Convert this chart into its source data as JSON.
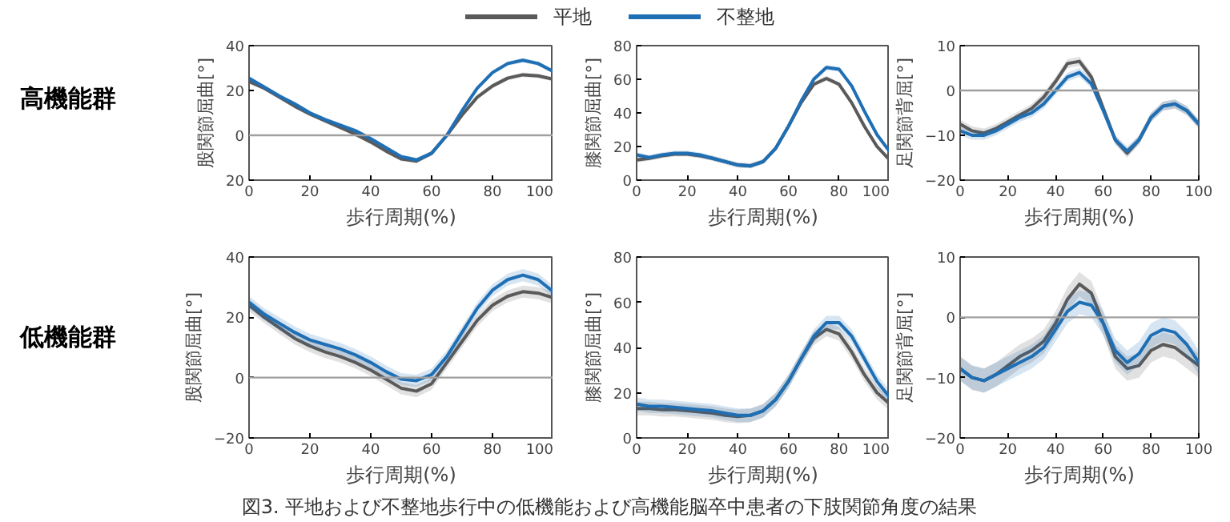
{
  "chart_data": [
    {
      "type": "line",
      "title": "高機能群",
      "ylabel": "股関節屈曲[°]",
      "xlabel": "歩行周期(%)",
      "x": [
        0,
        5,
        10,
        15,
        20,
        25,
        30,
        35,
        40,
        45,
        50,
        55,
        60,
        65,
        70,
        75,
        80,
        85,
        90,
        95,
        100
      ],
      "xlim": [
        0,
        100
      ],
      "xticks": [
        0,
        20,
        40,
        60,
        80,
        100
      ],
      "ylim": [
        -20,
        40
      ],
      "yticks": [
        {
          "value": -20,
          "label": "20"
        },
        0,
        20,
        40
      ],
      "ref_lines": [
        {
          "axis": "y",
          "value": 0,
          "color": "#a0a0a0"
        }
      ],
      "grid": false,
      "series": [
        {
          "color": "#5a5a5a",
          "values": [
            24,
            21,
            17,
            13,
            9.5,
            6.5,
            3.5,
            0.5,
            -3,
            -7,
            -10.5,
            -11.5,
            -8,
            0,
            9,
            17,
            22,
            25.5,
            27,
            26.5,
            25
          ],
          "lower": [
            23,
            20,
            16,
            12,
            8.5,
            5.5,
            2.5,
            -0.5,
            -4,
            -8,
            -11.5,
            -12.5,
            -9,
            -1,
            8,
            16,
            21,
            24.5,
            26,
            25.5,
            24
          ],
          "upper": [
            25,
            22,
            18,
            14,
            10.5,
            7.5,
            4.5,
            1.5,
            -2,
            -6,
            -9.5,
            -10.5,
            -7,
            1,
            10,
            18,
            23,
            26.5,
            28,
            27.5,
            26
          ]
        },
        {
          "color": "#1f6fb5",
          "values": [
            25.5,
            21.5,
            17.5,
            14,
            10,
            7,
            4.5,
            2,
            -1.5,
            -5.5,
            -9.5,
            -11,
            -8,
            0,
            11,
            21,
            28,
            32,
            33.5,
            32,
            28.5
          ],
          "lower": [
            24.5,
            20.5,
            16.5,
            13,
            9,
            6,
            3.5,
            1,
            -2.5,
            -6.5,
            -10.5,
            -12,
            -9,
            -1,
            10,
            20,
            27,
            31,
            32.5,
            31,
            27.5
          ],
          "upper": [
            26.5,
            22.5,
            18.5,
            15,
            11,
            8,
            5.5,
            3,
            -0.5,
            -4.5,
            -8.5,
            -10,
            -7,
            1,
            12,
            22,
            29,
            33,
            34.5,
            33,
            29.5
          ]
        }
      ]
    },
    {
      "type": "line",
      "ylabel": "膝関節屈曲[°]",
      "xlabel": "歩行周期(%)",
      "x": [
        0,
        5,
        10,
        15,
        20,
        25,
        30,
        35,
        40,
        45,
        50,
        55,
        60,
        65,
        70,
        75,
        80,
        85,
        90,
        95,
        100
      ],
      "xlim": [
        0,
        100
      ],
      "xticks": [
        0,
        20,
        40,
        60,
        80,
        100
      ],
      "ylim": [
        0,
        80
      ],
      "yticks": [
        0,
        20,
        40,
        60,
        80
      ],
      "grid": false,
      "legend": "top",
      "series": [
        {
          "name": "平地",
          "color": "#5a5a5a",
          "values": [
            12,
            13,
            14.5,
            15.5,
            15.5,
            14.5,
            13,
            11,
            9,
            8.5,
            11,
            19,
            32,
            46,
            57,
            60.5,
            57,
            46,
            32,
            20,
            12
          ],
          "lower": [
            10.5,
            11.5,
            13,
            14,
            14,
            13,
            11.5,
            9.5,
            7.5,
            7,
            9.5,
            17.5,
            30.5,
            44.5,
            55.5,
            59,
            55.5,
            44.5,
            30.5,
            18.5,
            10.5
          ],
          "upper": [
            13.5,
            14.5,
            16,
            17,
            17,
            16,
            14.5,
            12.5,
            10.5,
            10,
            12.5,
            20.5,
            33.5,
            47.5,
            58.5,
            62,
            58.5,
            47.5,
            33.5,
            21.5,
            13.5
          ]
        },
        {
          "name": "不整地",
          "color": "#1f6fb5",
          "values": [
            15,
            13.5,
            15,
            16,
            16,
            15,
            13,
            11,
            9,
            8.5,
            11,
            19,
            32,
            47,
            60,
            67,
            66,
            56,
            41,
            27,
            17
          ],
          "lower": [
            13.5,
            12,
            13.5,
            14.5,
            14.5,
            13.5,
            11.5,
            9.5,
            7.5,
            7,
            9.5,
            17.5,
            30.5,
            45.5,
            58.5,
            65.5,
            64.5,
            54.5,
            39.5,
            25.5,
            15.5
          ],
          "upper": [
            16.5,
            15,
            16.5,
            17.5,
            17.5,
            16.5,
            14.5,
            12.5,
            10.5,
            10,
            12.5,
            20.5,
            33.5,
            48.5,
            61.5,
            68.5,
            67.5,
            57.5,
            42.5,
            28.5,
            18.5
          ]
        }
      ]
    },
    {
      "type": "line",
      "ylabel": "足関節背屈[°]",
      "xlabel": "歩行周期(%)",
      "x": [
        0,
        5,
        10,
        15,
        20,
        25,
        30,
        35,
        40,
        45,
        50,
        55,
        60,
        65,
        70,
        75,
        80,
        85,
        90,
        95,
        100
      ],
      "xlim": [
        0,
        100
      ],
      "xticks": [
        0,
        20,
        40,
        60,
        80,
        100
      ],
      "ylim": [
        -20,
        10
      ],
      "yticks": [
        -20,
        -10,
        0,
        10
      ],
      "ref_lines": [
        {
          "axis": "y",
          "value": 0,
          "color": "#a0a0a0"
        }
      ],
      "grid": false,
      "series": [
        {
          "color": "#5a5a5a",
          "values": [
            -7.5,
            -9,
            -9.5,
            -8.5,
            -7,
            -5.5,
            -4,
            -1.5,
            2,
            6,
            6.5,
            3,
            -4,
            -11,
            -14,
            -11,
            -6,
            -3.5,
            -3,
            -4.5,
            -7.5
          ],
          "lower": [
            -8.5,
            -10,
            -10.5,
            -9.5,
            -8,
            -6.5,
            -5,
            -2.5,
            1,
            5,
            5.5,
            2,
            -5,
            -12,
            -15,
            -12,
            -7,
            -4.5,
            -4,
            -5.5,
            -8.5
          ],
          "upper": [
            -6.5,
            -8,
            -8.5,
            -7.5,
            -6,
            -4.5,
            -3,
            -0.5,
            3,
            7,
            7.5,
            4,
            -3,
            -10,
            -13,
            -10,
            -5,
            -2.5,
            -2,
            -3.5,
            -6.5
          ]
        },
        {
          "color": "#1f6fb5",
          "values": [
            -9,
            -10,
            -10,
            -9,
            -7.5,
            -6,
            -5,
            -3,
            0,
            3,
            4,
            1.5,
            -4.5,
            -11,
            -13.5,
            -11,
            -6,
            -3.5,
            -3,
            -4.5,
            -7.5
          ],
          "lower": [
            -10,
            -11,
            -11,
            -10,
            -8.5,
            -7,
            -6,
            -4,
            -1,
            2,
            3,
            0.5,
            -5.5,
            -12,
            -14.5,
            -12,
            -7,
            -4.5,
            -4,
            -5.5,
            -8.5
          ],
          "upper": [
            -8,
            -9,
            -9,
            -8,
            -6.5,
            -5,
            -4,
            -2,
            1,
            4,
            5,
            2.5,
            -3.5,
            -10,
            -12.5,
            -10,
            -5,
            -2.5,
            -2,
            -3.5,
            -6.5
          ]
        }
      ]
    },
    {
      "type": "line",
      "title": "低機能群",
      "ylabel": "股関節屈曲[°]",
      "xlabel": "歩行周期(%)",
      "x": [
        0,
        5,
        10,
        15,
        20,
        25,
        30,
        35,
        40,
        45,
        50,
        55,
        60,
        65,
        70,
        75,
        80,
        85,
        90,
        95,
        100
      ],
      "xlim": [
        0,
        100
      ],
      "xticks": [
        0,
        20,
        40,
        60,
        80,
        100
      ],
      "ylim": [
        -20,
        40
      ],
      "yticks": [
        -20,
        0,
        20,
        40
      ],
      "ref_lines": [
        {
          "axis": "y",
          "value": 0,
          "color": "#a0a0a0"
        }
      ],
      "grid": false,
      "series": [
        {
          "color": "#5a5a5a",
          "values": [
            24,
            20,
            16.5,
            13,
            10.5,
            8.5,
            7,
            5,
            2.5,
            -0.5,
            -3.5,
            -4.5,
            -2,
            5,
            12,
            19,
            24,
            27,
            28.5,
            28,
            26.5
          ],
          "lower": [
            22,
            18,
            14.5,
            11,
            8.5,
            6.5,
            5,
            3,
            0.5,
            -2.5,
            -5.5,
            -6.5,
            -4,
            3,
            10,
            17,
            22,
            25,
            26.5,
            26,
            24.5
          ],
          "upper": [
            26,
            22,
            18.5,
            15,
            12.5,
            10.5,
            9,
            7,
            4.5,
            1.5,
            -1.5,
            -2.5,
            0,
            7,
            14,
            21,
            26,
            29,
            30.5,
            30,
            28.5
          ]
        },
        {
          "color": "#1f6fb5",
          "values": [
            25,
            21,
            18,
            15,
            12.5,
            11,
            9.5,
            7.5,
            5,
            2,
            -0.5,
            -1,
            1,
            7,
            15,
            23,
            29,
            32.5,
            34,
            32.5,
            28.5
          ],
          "lower": [
            23,
            19,
            16,
            13,
            10.5,
            9,
            7.5,
            5.5,
            3,
            0,
            -2.5,
            -3,
            -1,
            5,
            13,
            21,
            27,
            30.5,
            32,
            30.5,
            26.5
          ],
          "upper": [
            27,
            23,
            20,
            17,
            14.5,
            13,
            11.5,
            9.5,
            7,
            4,
            1.5,
            1,
            3,
            9,
            17,
            25,
            31,
            34.5,
            36,
            34.5,
            30.5
          ]
        }
      ]
    },
    {
      "type": "line",
      "ylabel": "膝関節屈曲[°]",
      "xlabel": "歩行周期(%)",
      "x": [
        0,
        5,
        10,
        15,
        20,
        25,
        30,
        35,
        40,
        45,
        50,
        55,
        60,
        65,
        70,
        75,
        80,
        85,
        90,
        95,
        100
      ],
      "xlim": [
        0,
        100
      ],
      "xticks": [
        0,
        20,
        40,
        60,
        80,
        100
      ],
      "ylim": [
        0,
        80
      ],
      "yticks": [
        0,
        20,
        40,
        60,
        80
      ],
      "grid": false,
      "annotations": [
        "図3. 平地および不整地歩行中の低機能および高機能脳卒中患者の下肢関節角度の結果"
      ],
      "series": [
        {
          "color": "#5a5a5a",
          "values": [
            13,
            13,
            12.5,
            12.5,
            12,
            11.5,
            11,
            10,
            9.5,
            10,
            12,
            17,
            25,
            35,
            44,
            48,
            46,
            38,
            28,
            20,
            15
          ],
          "lower": [
            10,
            10,
            9.5,
            9.5,
            9,
            8.5,
            8,
            7,
            6.5,
            7,
            9,
            14,
            22,
            32,
            41,
            45,
            43,
            35,
            25,
            17,
            12
          ],
          "upper": [
            16,
            16,
            15.5,
            15.5,
            15,
            14.5,
            14,
            13,
            12.5,
            13,
            15,
            20,
            28,
            38,
            47,
            51,
            49,
            41,
            31,
            23,
            18
          ]
        },
        {
          "color": "#1f6fb5",
          "values": [
            15,
            14,
            14,
            13.5,
            13,
            12.5,
            12,
            11,
            10,
            10,
            12,
            17,
            25,
            35,
            45,
            51,
            51,
            45,
            35,
            25,
            18
          ],
          "lower": [
            12,
            11,
            11,
            10.5,
            10,
            9.5,
            9,
            8,
            7,
            7,
            9,
            14,
            22,
            32,
            42,
            48,
            48,
            42,
            32,
            22,
            15
          ],
          "upper": [
            18,
            17,
            17,
            16.5,
            16,
            15.5,
            15,
            14,
            13,
            13,
            15,
            20,
            28,
            38,
            48,
            54,
            54,
            48,
            38,
            28,
            21
          ]
        }
      ]
    },
    {
      "type": "line",
      "ylabel": "足関節背屈[°]",
      "xlabel": "歩行周期(%)",
      "x": [
        0,
        5,
        10,
        15,
        20,
        25,
        30,
        35,
        40,
        45,
        50,
        55,
        60,
        65,
        70,
        75,
        80,
        85,
        90,
        95,
        100
      ],
      "xlim": [
        0,
        100
      ],
      "xticks": [
        0,
        20,
        40,
        60,
        80,
        100
      ],
      "ylim": [
        -20,
        10
      ],
      "yticks": [
        -20,
        -10,
        0,
        10
      ],
      "ref_lines": [
        {
          "axis": "y",
          "value": 0,
          "color": "#a0a0a0"
        }
      ],
      "grid": false,
      "series": [
        {
          "color": "#5a5a5a",
          "values": [
            -8.5,
            -10,
            -10.5,
            -9.5,
            -8,
            -6.5,
            -5.5,
            -4,
            -1,
            3,
            5.5,
            4,
            -1,
            -6.5,
            -8.5,
            -8,
            -5.5,
            -4.5,
            -5,
            -6.5,
            -8
          ],
          "lower": [
            -10.5,
            -12,
            -12.5,
            -11.5,
            -10,
            -8.5,
            -7.5,
            -6,
            -3,
            1,
            3.5,
            2,
            -3,
            -8.5,
            -10.5,
            -10,
            -7.5,
            -6.5,
            -7,
            -8.5,
            -10
          ],
          "upper": [
            -6.5,
            -8,
            -8.5,
            -7.5,
            -6,
            -4.5,
            -3.5,
            -2,
            1,
            5,
            7.5,
            6,
            1,
            -4.5,
            -6.5,
            -6,
            -3.5,
            -2.5,
            -3,
            -4.5,
            -6
          ]
        },
        {
          "color": "#1f6fb5",
          "values": [
            -8.5,
            -10,
            -10.5,
            -9.5,
            -8.5,
            -7.5,
            -6.5,
            -5,
            -2,
            1,
            2.5,
            2,
            -1,
            -5.5,
            -7.5,
            -6,
            -3,
            -2,
            -2.5,
            -4.5,
            -7.5
          ],
          "lower": [
            -10.5,
            -12,
            -12.5,
            -11.5,
            -10.5,
            -9.5,
            -8.5,
            -7,
            -4,
            -1,
            0.5,
            0,
            -3,
            -7.5,
            -9.5,
            -8,
            -5,
            -4,
            -4.5,
            -6.5,
            -9.5
          ],
          "upper": [
            -6.5,
            -8,
            -8.5,
            -7.5,
            -6.5,
            -5.5,
            -4.5,
            -3,
            0,
            3,
            4.5,
            4,
            1,
            -3.5,
            -5.5,
            -4,
            -1,
            0,
            -0.5,
            -2.5,
            -5.5
          ]
        }
      ]
    }
  ]
}
